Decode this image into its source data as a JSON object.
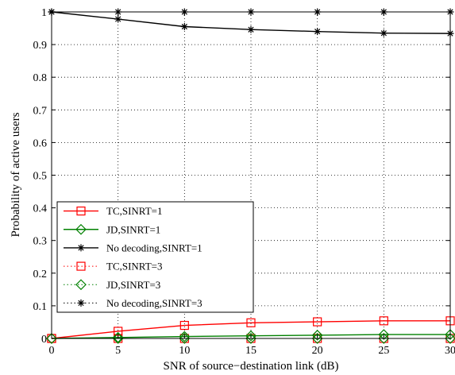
{
  "chart_data": {
    "type": "line",
    "title": "",
    "xlabel": "SNR of source−destination link (dB)",
    "ylabel": "Probability of active users",
    "xlim": [
      0,
      30
    ],
    "ylim": [
      0,
      1
    ],
    "x_ticks": [
      "0",
      "5",
      "10",
      "15",
      "20",
      "25",
      "30"
    ],
    "y_ticks": [
      "0",
      "0.1",
      "0.2",
      "0.3",
      "0.4",
      "0.5",
      "0.6",
      "0.7",
      "0.8",
      "0.9",
      "1"
    ],
    "grid": true,
    "legend_position": "lower-left",
    "x": [
      0,
      5,
      10,
      15,
      20,
      25,
      30
    ],
    "series": [
      {
        "name": "TC,SINRT=1",
        "values": [
          0,
          0.022,
          0.04,
          0.048,
          0.051,
          0.054,
          0.054
        ],
        "color": "#ff0000",
        "marker": "square",
        "line": "solid"
      },
      {
        "name": "JD,SINRT=1",
        "values": [
          0,
          0.003,
          0.006,
          0.008,
          0.01,
          0.012,
          0.012
        ],
        "color": "#008000",
        "marker": "diamond",
        "line": "solid"
      },
      {
        "name": "No decoding,SINRT=1",
        "values": [
          1.0,
          0.978,
          0.955,
          0.946,
          0.94,
          0.935,
          0.934
        ],
        "color": "#000000",
        "marker": "star",
        "line": "solid"
      },
      {
        "name": "TC,SINRT=3",
        "values": [
          0,
          0,
          0,
          0,
          0,
          0,
          0
        ],
        "color": "#ff0000",
        "marker": "square",
        "line": "dotted"
      },
      {
        "name": "JD,SINRT=3",
        "values": [
          0,
          0,
          0,
          0,
          0,
          0,
          0
        ],
        "color": "#008000",
        "marker": "diamond",
        "line": "dotted"
      },
      {
        "name": "No decoding,SINRT=3",
        "values": [
          1,
          1,
          1,
          1,
          1,
          1,
          1
        ],
        "color": "#000000",
        "marker": "star",
        "line": "dotted"
      }
    ]
  }
}
